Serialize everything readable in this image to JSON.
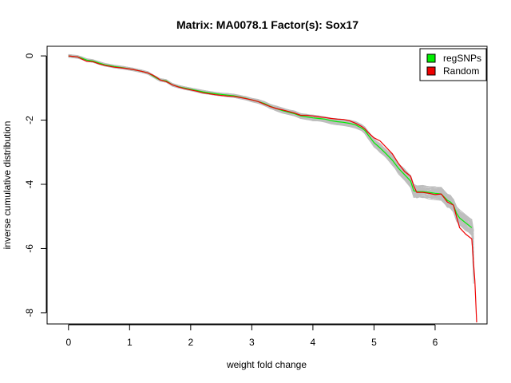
{
  "chart_data": {
    "type": "line",
    "title": "Matrix: MA0078.1 Factor(s): Sox17",
    "xlabel": "weight fold change",
    "ylabel": "inverse cumulative distribution",
    "xlim": [
      -0.35,
      6.85
    ],
    "ylim": [
      -8.35,
      0.3
    ],
    "x_ticks": [
      0,
      1,
      2,
      3,
      4,
      5,
      6
    ],
    "y_ticks": [
      0,
      -2,
      -4,
      -6,
      -8
    ],
    "grid": false,
    "legend_position": "top-right",
    "colors": {
      "regSNPs": "#00ee00",
      "Random": "#ee0000",
      "background": "#bebebe"
    },
    "legend": [
      {
        "label": "regSNPs",
        "color": "#00ee00"
      },
      {
        "label": "Random",
        "color": "#ee0000"
      }
    ],
    "series": [
      {
        "name": "regSNPs",
        "x": [
          0.0,
          0.15,
          0.22,
          0.3,
          0.4,
          0.5,
          0.6,
          0.75,
          0.9,
          1.05,
          1.2,
          1.3,
          1.38,
          1.45,
          1.5,
          1.6,
          1.7,
          1.8,
          1.9,
          2.0,
          2.1,
          2.2,
          2.3,
          2.4,
          2.5,
          2.6,
          2.7,
          2.8,
          2.9,
          3.0,
          3.1,
          3.2,
          3.3,
          3.4,
          3.5,
          3.6,
          3.7,
          3.8,
          3.9,
          4.0,
          4.1,
          4.2,
          4.3,
          4.4,
          4.5,
          4.6,
          4.7,
          4.8,
          4.85,
          4.9,
          5.0,
          5.1,
          5.2,
          5.3,
          5.4,
          5.5,
          5.6,
          5.65,
          5.7,
          5.8,
          5.9,
          6.0,
          6.1,
          6.2,
          6.25,
          6.3,
          6.35,
          6.4,
          6.5,
          6.6
        ],
        "y": [
          0.0,
          -0.03,
          -0.07,
          -0.13,
          -0.16,
          -0.22,
          -0.28,
          -0.33,
          -0.37,
          -0.42,
          -0.48,
          -0.53,
          -0.62,
          -0.7,
          -0.75,
          -0.78,
          -0.9,
          -0.96,
          -1.0,
          -1.04,
          -1.08,
          -1.12,
          -1.15,
          -1.18,
          -1.2,
          -1.22,
          -1.24,
          -1.28,
          -1.32,
          -1.37,
          -1.42,
          -1.48,
          -1.57,
          -1.64,
          -1.7,
          -1.75,
          -1.8,
          -1.87,
          -1.9,
          -1.93,
          -1.95,
          -1.97,
          -2.02,
          -2.05,
          -2.07,
          -2.1,
          -2.15,
          -2.25,
          -2.32,
          -2.45,
          -2.7,
          -2.87,
          -3.05,
          -3.25,
          -3.5,
          -3.7,
          -3.9,
          -4.2,
          -4.23,
          -4.23,
          -4.25,
          -4.28,
          -4.3,
          -4.5,
          -4.55,
          -4.65,
          -4.9,
          -5.05,
          -5.2,
          -5.35
        ]
      },
      {
        "name": "Random",
        "x": [
          0.0,
          0.15,
          0.22,
          0.3,
          0.4,
          0.5,
          0.6,
          0.75,
          0.9,
          1.05,
          1.2,
          1.3,
          1.38,
          1.45,
          1.5,
          1.6,
          1.7,
          1.8,
          1.9,
          2.0,
          2.1,
          2.2,
          2.3,
          2.4,
          2.5,
          2.6,
          2.7,
          2.8,
          2.9,
          3.0,
          3.1,
          3.2,
          3.3,
          3.4,
          3.5,
          3.6,
          3.7,
          3.8,
          3.9,
          4.0,
          4.1,
          4.2,
          4.3,
          4.4,
          4.5,
          4.6,
          4.7,
          4.8,
          4.85,
          4.9,
          5.0,
          5.1,
          5.2,
          5.3,
          5.4,
          5.5,
          5.6,
          5.65,
          5.7,
          5.8,
          5.9,
          6.0,
          6.1,
          6.2,
          6.25,
          6.3,
          6.35,
          6.4,
          6.5,
          6.6,
          6.65,
          6.68
        ],
        "y": [
          0.0,
          -0.03,
          -0.1,
          -0.17,
          -0.18,
          -0.25,
          -0.3,
          -0.35,
          -0.38,
          -0.42,
          -0.48,
          -0.53,
          -0.6,
          -0.68,
          -0.75,
          -0.8,
          -0.9,
          -0.97,
          -1.02,
          -1.06,
          -1.1,
          -1.15,
          -1.18,
          -1.21,
          -1.23,
          -1.25,
          -1.26,
          -1.29,
          -1.33,
          -1.37,
          -1.42,
          -1.5,
          -1.58,
          -1.64,
          -1.68,
          -1.73,
          -1.78,
          -1.85,
          -1.85,
          -1.87,
          -1.9,
          -1.92,
          -1.95,
          -1.97,
          -1.98,
          -2.02,
          -2.1,
          -2.2,
          -2.27,
          -2.38,
          -2.55,
          -2.65,
          -2.85,
          -3.05,
          -3.35,
          -3.6,
          -3.75,
          -4.05,
          -4.25,
          -4.25,
          -4.28,
          -4.32,
          -4.3,
          -4.55,
          -4.6,
          -4.65,
          -5.0,
          -5.35,
          -5.55,
          -5.7,
          -7.0,
          -8.3
        ]
      }
    ]
  }
}
